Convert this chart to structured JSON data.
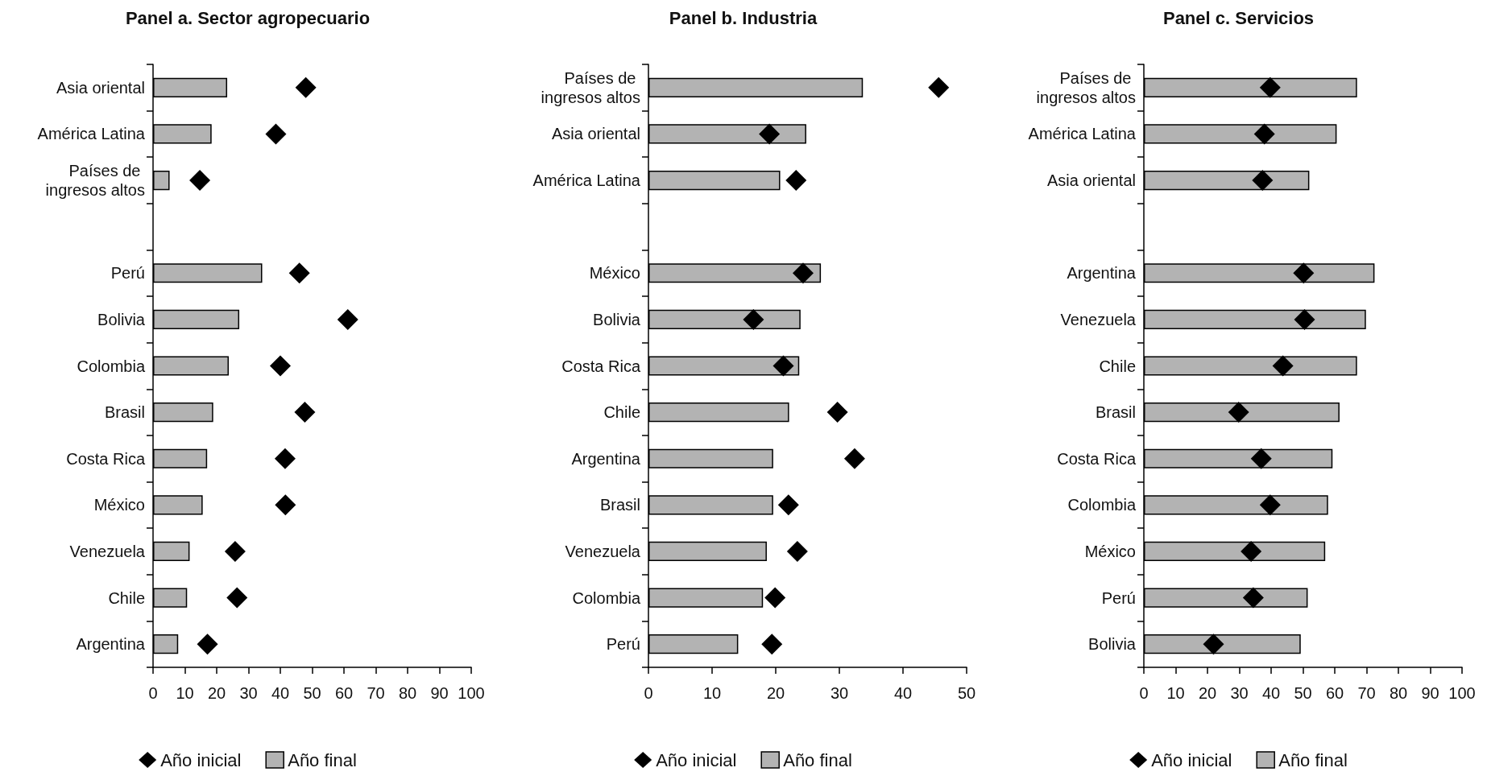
{
  "chart_data": [
    {
      "type": "bar",
      "title": "Panel a. Sector agropecuario",
      "orientation": "horizontal",
      "legend": "bottom",
      "marker": "diamond",
      "categories": [
        "Asia oriental",
        "América Latina",
        "Países de ingresos altos",
        null,
        "Perú",
        "Bolivia",
        "Colombia",
        "Brasil",
        "Costa Rica",
        "México",
        "Venezuela",
        "Chile",
        "Argentina"
      ],
      "xlim": [
        0,
        100
      ],
      "xticks": [
        0,
        10,
        20,
        30,
        40,
        50,
        60,
        70,
        80,
        90,
        100
      ],
      "series": [
        {
          "name": "Año inicial",
          "type": "scatter",
          "color": "#000000",
          "values": [
            48,
            38.6,
            14.7,
            null,
            46,
            61.2,
            40,
            47.7,
            41.5,
            41.6,
            25.8,
            26.4,
            17.1
          ]
        },
        {
          "name": "Año final",
          "type": "bar",
          "color": "#b3b3b3",
          "values": [
            23.3,
            18.4,
            5.2,
            null,
            34.3,
            27.1,
            23.8,
            18.9,
            17,
            15.6,
            11.5,
            10.7,
            7.9
          ]
        }
      ]
    },
    {
      "type": "bar",
      "title": "Panel b. Industria",
      "orientation": "horizontal",
      "legend": "bottom",
      "marker": "diamond",
      "categories": [
        "Países de ingresos altos",
        "Asia oriental",
        "América Latina",
        null,
        "México",
        "Bolivia",
        "Costa Rica",
        "Chile",
        "Argentina",
        "Brasil",
        "Venezuela",
        "Colombia",
        "Perú"
      ],
      "xlim": [
        0,
        50
      ],
      "xticks": [
        0,
        10,
        20,
        30,
        40,
        50
      ],
      "series": [
        {
          "name": "Año inicial",
          "type": "scatter",
          "color": "#000000",
          "values": [
            45.6,
            19,
            23.2,
            null,
            24.3,
            16.5,
            21.2,
            29.7,
            32.4,
            22,
            23.4,
            19.9,
            19.4
          ]
        },
        {
          "name": "Año final",
          "type": "bar",
          "color": "#b3b3b3",
          "values": [
            33.7,
            24.8,
            20.7,
            null,
            27.1,
            23.9,
            23.7,
            22.1,
            19.6,
            19.6,
            18.6,
            18,
            14.1
          ]
        }
      ]
    },
    {
      "type": "bar",
      "title": "Panel c. Servicios",
      "orientation": "horizontal",
      "legend": "bottom",
      "marker": "diamond",
      "categories": [
        "Países de ingresos altos",
        "América Latina",
        "Asia oriental",
        null,
        "Argentina",
        "Venezuela",
        "Chile",
        "Brasil",
        "Costa Rica",
        "Colombia",
        "México",
        "Perú",
        "Bolivia"
      ],
      "xlim": [
        0,
        100
      ],
      "xticks": [
        0,
        10,
        20,
        30,
        40,
        50,
        60,
        70,
        80,
        90,
        100
      ],
      "series": [
        {
          "name": "Año inicial",
          "type": "scatter",
          "color": "#000000",
          "values": [
            39.7,
            37.9,
            37.3,
            null,
            50.2,
            50.5,
            43.7,
            29.8,
            36.9,
            39.7,
            33.7,
            34.4,
            21.9
          ]
        },
        {
          "name": "Año final",
          "type": "bar",
          "color": "#b3b3b3",
          "values": [
            67,
            60.6,
            52,
            null,
            72.5,
            69.8,
            67,
            61.5,
            59.3,
            57.9,
            57,
            51.5,
            49.3
          ]
        }
      ]
    }
  ]
}
